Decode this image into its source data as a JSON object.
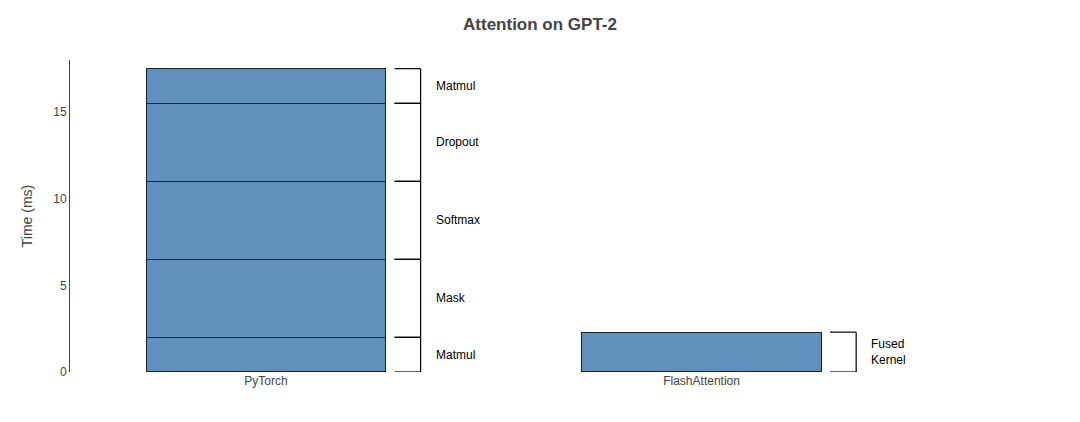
{
  "chart_data": {
    "type": "bar",
    "title": "Attention on GPT-2",
    "ylabel": "Time (ms)",
    "categories": [
      "PyTorch",
      "FlashAttention"
    ],
    "stacked": true,
    "color": "#6090be",
    "series": [
      {
        "name": "Matmul",
        "values": [
          2.0,
          null
        ]
      },
      {
        "name": "Mask",
        "values": [
          4.5,
          null
        ]
      },
      {
        "name": "Softmax",
        "values": [
          4.5,
          null
        ]
      },
      {
        "name": "Dropout",
        "values": [
          4.5,
          null
        ]
      },
      {
        "name": "Matmul",
        "values": [
          2.0,
          null
        ]
      },
      {
        "name": "Fused\nKernel",
        "values": [
          null,
          2.3
        ]
      }
    ],
    "ylim": [
      0,
      18
    ],
    "yticks": [
      0,
      5,
      10,
      15
    ],
    "grid": false,
    "legend": false
  }
}
